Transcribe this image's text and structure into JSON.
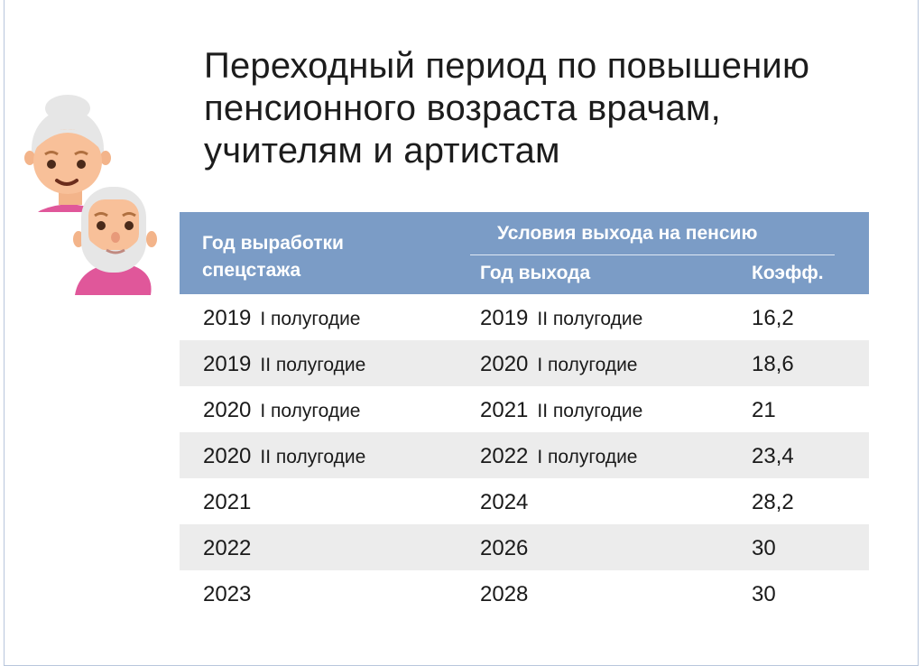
{
  "title": "Переходный период по повышению пенсионного возраста врачам, учителям и артистам",
  "title_lines": [
    "Переходный период по повышению",
    "пенсионного возраста врачам,",
    "учителям и артистам"
  ],
  "colors": {
    "header": "#7b9cc6",
    "stripe": "#ececec"
  },
  "icons": [
    "elderly-woman-avatar",
    "elderly-man-avatar"
  ],
  "table": {
    "header": {
      "col1_line1": "Год выработки",
      "col1_line2": "спецстажа",
      "group": "Условия выхода на пенсию",
      "year": "Год выхода",
      "coef": "Коэфф."
    },
    "rows": [
      {
        "y1": "2019",
        "s1": "I полугодие",
        "y2": "2019",
        "s2": "II полугодие",
        "coef": "16,2"
      },
      {
        "y1": "2019",
        "s1": "II полугодие",
        "y2": "2020",
        "s2": "I полугодие",
        "coef": "18,6"
      },
      {
        "y1": "2020",
        "s1": "I полугодие",
        "y2": "2021",
        "s2": "II полугодие",
        "coef": "21"
      },
      {
        "y1": "2020",
        "s1": "II полугодие",
        "y2": "2022",
        "s2": "I полугодие",
        "coef": "23,4"
      },
      {
        "y1": "2021",
        "s1": "",
        "y2": "2024",
        "s2": "",
        "coef": "28,2"
      },
      {
        "y1": "2022",
        "s1": "",
        "y2": "2026",
        "s2": "",
        "coef": "30"
      },
      {
        "y1": "2023",
        "s1": "",
        "y2": "2028",
        "s2": "",
        "coef": "30"
      }
    ]
  }
}
